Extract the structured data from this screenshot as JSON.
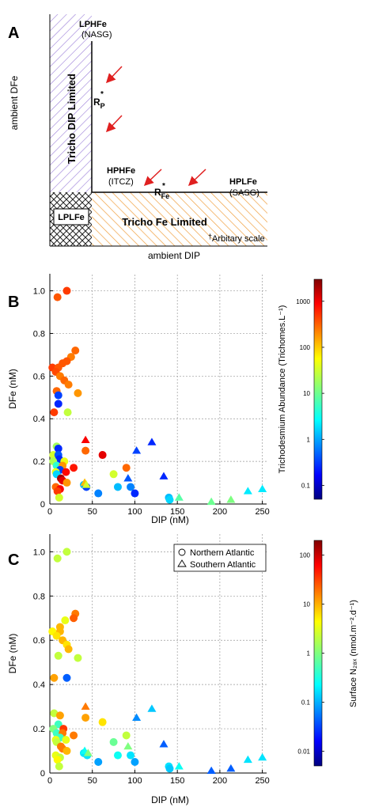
{
  "figure": {
    "panel_a": {
      "letter": "A",
      "ylabel": "ambient DFe",
      "xlabel": "ambient DIP",
      "lphfe": "LPHFe",
      "nasg": "(NASG)",
      "rp": "R",
      "rp_sub": "P",
      "star": "*",
      "hphfe": "HPHFe",
      "itcz": "(ITCZ)",
      "rfe": "R",
      "rfe_sub": "Fe",
      "hplfe": "HPLFe",
      "sasg": "(SASG)",
      "lplfe": "LPLFe",
      "dip_limited": "Tricho DIP Limited",
      "fe_limited": "Tricho Fe Limited",
      "scale_note": "Arbitary scale",
      "dagger": "†",
      "colors": {
        "dip_hatch": "#9b7ed8",
        "fe_hatch": "#f0a040",
        "arrow": "#e02020"
      }
    },
    "panel_b": {
      "letter": "B",
      "colorbar": {
        "label": "Trichodesmium Abundance (Trichomes.L⁻¹)",
        "ticks": [
          "1000",
          "100",
          "10",
          "1",
          "0.1"
        ]
      }
    },
    "panel_c": {
      "letter": "C",
      "legend": {
        "northern": "Northern Atlantic",
        "southern": "Southern Atlantic"
      },
      "colorbar": {
        "label": "Surface N₂₈ₓ (nmol.m⁻².d⁻¹)",
        "ticks": [
          "100",
          "10",
          "1",
          "0.1",
          "0.01"
        ]
      }
    }
  },
  "chart_data": [
    {
      "type": "scatter",
      "panel": "B",
      "xlabel": "DIP (nM)",
      "ylabel": "DFe (nM)",
      "xlim": [
        0,
        255
      ],
      "ylim": [
        0,
        1.08
      ],
      "xticks": [
        0,
        50,
        100,
        150,
        200,
        250
      ],
      "yticks": [
        0,
        0.2,
        0.4,
        0.6,
        0.8,
        1.0
      ],
      "grid": true,
      "color_scale": "log, Trichodesmium abundance",
      "colorbar_range": [
        0.05,
        3000
      ],
      "series": [
        {
          "marker": "circle",
          "points": [
            {
              "x": 20,
              "y": 1.0,
              "c": 400
            },
            {
              "x": 9,
              "y": 0.97,
              "c": 300
            },
            {
              "x": 30,
              "y": 0.72,
              "c": 250
            },
            {
              "x": 25,
              "y": 0.69,
              "c": 200
            },
            {
              "x": 20,
              "y": 0.67,
              "c": 300
            },
            {
              "x": 15,
              "y": 0.66,
              "c": 300
            },
            {
              "x": 3,
              "y": 0.64,
              "c": 400
            },
            {
              "x": 10,
              "y": 0.64,
              "c": 300
            },
            {
              "x": 7,
              "y": 0.62,
              "c": 350
            },
            {
              "x": 12,
              "y": 0.6,
              "c": 200
            },
            {
              "x": 17,
              "y": 0.58,
              "c": 250
            },
            {
              "x": 22,
              "y": 0.56,
              "c": 200
            },
            {
              "x": 8,
              "y": 0.53,
              "c": 250
            },
            {
              "x": 33,
              "y": 0.52,
              "c": 150
            },
            {
              "x": 10,
              "y": 0.51,
              "c": 0.4
            },
            {
              "x": 10,
              "y": 0.47,
              "c": 0.3
            },
            {
              "x": 21,
              "y": 0.43,
              "c": 25
            },
            {
              "x": 5,
              "y": 0.43,
              "c": 400
            },
            {
              "x": 8,
              "y": 0.27,
              "c": 18
            },
            {
              "x": 10,
              "y": 0.26,
              "c": 0.3
            },
            {
              "x": 42,
              "y": 0.25,
              "c": 250
            },
            {
              "x": 4,
              "y": 0.23,
              "c": 30
            },
            {
              "x": 10,
              "y": 0.23,
              "c": 0.5
            },
            {
              "x": 62,
              "y": 0.23,
              "c": 1000
            },
            {
              "x": 11,
              "y": 0.21,
              "c": 0.3
            },
            {
              "x": 17,
              "y": 0.2,
              "c": 40
            },
            {
              "x": 4,
              "y": 0.2,
              "c": 20
            },
            {
              "x": 8,
              "y": 0.18,
              "c": 5
            },
            {
              "x": 15,
              "y": 0.18,
              "c": 150
            },
            {
              "x": 28,
              "y": 0.17,
              "c": 600
            },
            {
              "x": 90,
              "y": 0.17,
              "c": 250
            },
            {
              "x": 12,
              "y": 0.16,
              "c": 0.4
            },
            {
              "x": 7,
              "y": 0.15,
              "c": 40
            },
            {
              "x": 19,
              "y": 0.15,
              "c": 700
            },
            {
              "x": 8,
              "y": 0.14,
              "c": 2
            },
            {
              "x": 75,
              "y": 0.14,
              "c": 30
            },
            {
              "x": 13,
              "y": 0.12,
              "c": 2000
            },
            {
              "x": 15,
              "y": 0.11,
              "c": 1000
            },
            {
              "x": 20,
              "y": 0.1,
              "c": 150
            },
            {
              "x": 40,
              "y": 0.09,
              "c": 1.5
            },
            {
              "x": 43,
              "y": 0.08,
              "c": 0.4
            },
            {
              "x": 80,
              "y": 0.08,
              "c": 1.5
            },
            {
              "x": 7,
              "y": 0.08,
              "c": 250
            },
            {
              "x": 95,
              "y": 0.08,
              "c": 0.8
            },
            {
              "x": 12,
              "y": 0.07,
              "c": 800
            },
            {
              "x": 9,
              "y": 0.06,
              "c": 400
            },
            {
              "x": 57,
              "y": 0.05,
              "c": 0.8
            },
            {
              "x": 100,
              "y": 0.05,
              "c": 0.3
            },
            {
              "x": 11,
              "y": 0.03,
              "c": 30
            },
            {
              "x": 140,
              "y": 0.03,
              "c": 1.5
            },
            {
              "x": 141,
              "y": 0.02,
              "c": 2
            }
          ]
        },
        {
          "marker": "triangle",
          "points": [
            {
              "x": 42,
              "y": 0.3,
              "c": 800
            },
            {
              "x": 120,
              "y": 0.29,
              "c": 0.3
            },
            {
              "x": 102,
              "y": 0.25,
              "c": 0.4
            },
            {
              "x": 134,
              "y": 0.13,
              "c": 0.3
            },
            {
              "x": 92,
              "y": 0.12,
              "c": 0.5
            },
            {
              "x": 41,
              "y": 0.1,
              "c": 100
            },
            {
              "x": 43,
              "y": 0.09,
              "c": 30
            },
            {
              "x": 152,
              "y": 0.03,
              "c": 8
            },
            {
              "x": 190,
              "y": 0.01,
              "c": 10
            },
            {
              "x": 213,
              "y": 0.02,
              "c": 12
            },
            {
              "x": 233,
              "y": 0.06,
              "c": 2.5
            },
            {
              "x": 250,
              "y": 0.07,
              "c": 2.5
            }
          ]
        }
      ]
    },
    {
      "type": "scatter",
      "panel": "C",
      "xlabel": "DIP (nM)",
      "ylabel": "DFe (nM)",
      "xlim": [
        0,
        255
      ],
      "ylim": [
        0,
        1.08
      ],
      "xticks": [
        0,
        50,
        100,
        150,
        200,
        250
      ],
      "yticks": [
        0,
        0.2,
        0.4,
        0.6,
        0.8,
        1.0
      ],
      "grid": true,
      "legend_position": "top-right",
      "color_scale": "log, surface N2 fixation",
      "colorbar_range": [
        0.005,
        200
      ],
      "series": [
        {
          "name": "Northern Atlantic",
          "marker": "circle",
          "points": [
            {
              "x": 20,
              "y": 1.0,
              "c": 2
            },
            {
              "x": 9,
              "y": 0.97,
              "c": 2
            },
            {
              "x": 30,
              "y": 0.72,
              "c": 15
            },
            {
              "x": 28,
              "y": 0.7,
              "c": 20
            },
            {
              "x": 18,
              "y": 0.69,
              "c": 3
            },
            {
              "x": 12,
              "y": 0.66,
              "c": 8
            },
            {
              "x": 3,
              "y": 0.64,
              "c": 4
            },
            {
              "x": 12,
              "y": 0.64,
              "c": 8
            },
            {
              "x": 8,
              "y": 0.62,
              "c": 5
            },
            {
              "x": 15,
              "y": 0.6,
              "c": 8
            },
            {
              "x": 20,
              "y": 0.58,
              "c": 5
            },
            {
              "x": 22,
              "y": 0.56,
              "c": 8
            },
            {
              "x": 10,
              "y": 0.53,
              "c": 2
            },
            {
              "x": 33,
              "y": 0.52,
              "c": 2
            },
            {
              "x": 5,
              "y": 0.43,
              "c": 10
            },
            {
              "x": 20,
              "y": 0.43,
              "c": 0.05
            },
            {
              "x": 5,
              "y": 0.27,
              "c": 2
            },
            {
              "x": 12,
              "y": 0.26,
              "c": 10
            },
            {
              "x": 42,
              "y": 0.25,
              "c": 10
            },
            {
              "x": 62,
              "y": 0.23,
              "c": 5
            },
            {
              "x": 10,
              "y": 0.22,
              "c": 0.5
            },
            {
              "x": 16,
              "y": 0.2,
              "c": 30
            },
            {
              "x": 4,
              "y": 0.2,
              "c": 1
            },
            {
              "x": 8,
              "y": 0.18,
              "c": 0.5
            },
            {
              "x": 15,
              "y": 0.18,
              "c": 15
            },
            {
              "x": 28,
              "y": 0.17,
              "c": 15
            },
            {
              "x": 90,
              "y": 0.17,
              "c": 2
            },
            {
              "x": 12,
              "y": 0.16,
              "c": 0.5
            },
            {
              "x": 7,
              "y": 0.15,
              "c": 3
            },
            {
              "x": 19,
              "y": 0.15,
              "c": 3
            },
            {
              "x": 8,
              "y": 0.14,
              "c": 2
            },
            {
              "x": 75,
              "y": 0.14,
              "c": 0.8
            },
            {
              "x": 13,
              "y": 0.12,
              "c": 15
            },
            {
              "x": 15,
              "y": 0.11,
              "c": 15
            },
            {
              "x": 20,
              "y": 0.1,
              "c": 8
            },
            {
              "x": 40,
              "y": 0.09,
              "c": 0.2
            },
            {
              "x": 44,
              "y": 0.08,
              "c": 0.2
            },
            {
              "x": 80,
              "y": 0.08,
              "c": 0.3
            },
            {
              "x": 7,
              "y": 0.08,
              "c": 3
            },
            {
              "x": 95,
              "y": 0.08,
              "c": 0.2
            },
            {
              "x": 12,
              "y": 0.07,
              "c": 2
            },
            {
              "x": 9,
              "y": 0.06,
              "c": 4
            },
            {
              "x": 57,
              "y": 0.05,
              "c": 0.1
            },
            {
              "x": 100,
              "y": 0.05,
              "c": 0.1
            },
            {
              "x": 11,
              "y": 0.03,
              "c": 2
            },
            {
              "x": 140,
              "y": 0.03,
              "c": 0.2
            },
            {
              "x": 141,
              "y": 0.02,
              "c": 0.15
            }
          ]
        },
        {
          "name": "Southern Atlantic",
          "marker": "triangle",
          "points": [
            {
              "x": 42,
              "y": 0.3,
              "c": 15
            },
            {
              "x": 120,
              "y": 0.29,
              "c": 0.15
            },
            {
              "x": 102,
              "y": 0.25,
              "c": 0.08
            },
            {
              "x": 134,
              "y": 0.13,
              "c": 0.05
            },
            {
              "x": 92,
              "y": 0.12,
              "c": 1
            },
            {
              "x": 41,
              "y": 0.1,
              "c": 0.3
            },
            {
              "x": 45,
              "y": 0.09,
              "c": 1
            },
            {
              "x": 152,
              "y": 0.03,
              "c": 0.3
            },
            {
              "x": 190,
              "y": 0.01,
              "c": 0.05
            },
            {
              "x": 213,
              "y": 0.02,
              "c": 0.05
            },
            {
              "x": 233,
              "y": 0.06,
              "c": 0.2
            },
            {
              "x": 250,
              "y": 0.07,
              "c": 0.2
            }
          ]
        }
      ]
    }
  ]
}
